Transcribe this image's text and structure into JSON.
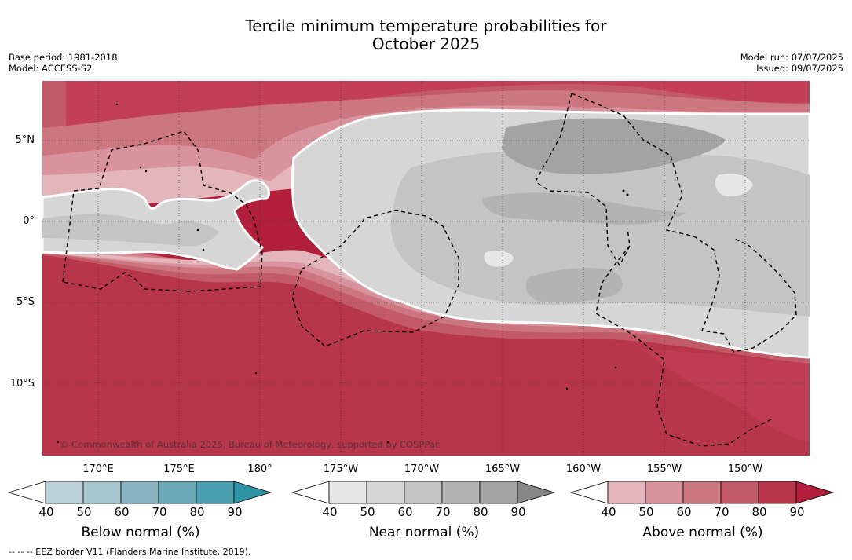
{
  "title_line1": "Tercile minimum temperature probabilities for",
  "title_line2": "October 2025",
  "base_period": "Base period: 1981-2018",
  "model": "Model: ACCESS-S2",
  "model_run": "Model run: 07/07/2025",
  "issued": "Issued: 09/07/2025",
  "latitude_labels": [
    "5°N",
    "0°",
    "5°S",
    "10°S"
  ],
  "longitude_labels": [
    "170°E",
    "175°E",
    "180°",
    "175°W",
    "170°W",
    "165°W",
    "160°W",
    "155°W",
    "150°W"
  ],
  "copyright": "© Commonwealth of Australia 2025, Bureau of Meteorology, supported by COSPPac",
  "colorbars": [
    {
      "label": "Below normal (%)",
      "ticks": [
        "40",
        "50",
        "60",
        "70",
        "80",
        "90"
      ],
      "colors": [
        "#ffffff",
        "#bdd3da",
        "#a5c6cd",
        "#88b5c1",
        "#6aa9b8",
        "#4b9faf",
        "#2f93a6"
      ]
    },
    {
      "label": "Near normal (%)",
      "ticks": [
        "40",
        "50",
        "60",
        "70",
        "80",
        "90"
      ],
      "colors": [
        "#ffffff",
        "#e7e7e7",
        "#d6d6d6",
        "#c4c4c4",
        "#b3b3b3",
        "#a3a3a3",
        "#868686"
      ]
    },
    {
      "label": "Above normal (%)",
      "ticks": [
        "40",
        "50",
        "60",
        "70",
        "80",
        "90"
      ],
      "colors": [
        "#ffffff",
        "#e3b6bc",
        "#d9939c",
        "#cc7680",
        "#c25a67",
        "#b8364a",
        "#b11f3a"
      ]
    }
  ],
  "eez_note": "--  --  -- EEZ border V11 (Flanders Marine Institute, 2019)."
}
